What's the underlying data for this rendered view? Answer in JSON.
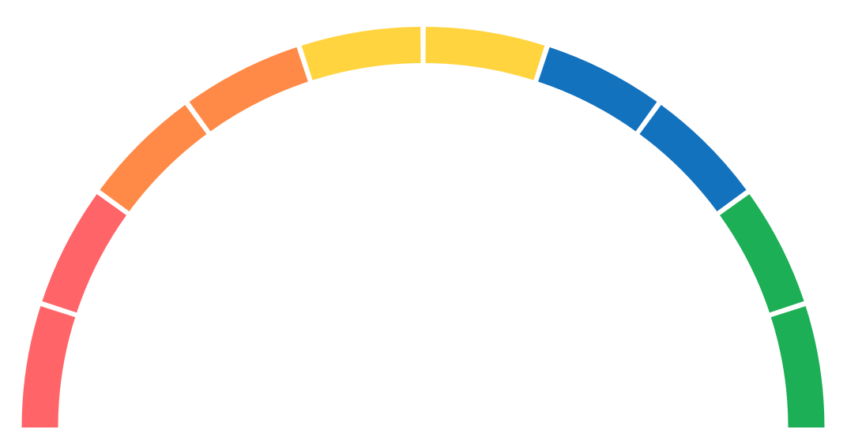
{
  "chart_data": {
    "type": "gauge",
    "start_angle_deg": 180,
    "end_angle_deg": 0,
    "segments": [
      {
        "color": "#FF6468"
      },
      {
        "color": "#FF6468"
      },
      {
        "color": "#FF8A47"
      },
      {
        "color": "#FF8A47"
      },
      {
        "color": "#FFD43F"
      },
      {
        "color": "#FFD43F"
      },
      {
        "color": "#1372BE"
      },
      {
        "color": "#1372BE"
      },
      {
        "color": "#1CAF55"
      },
      {
        "color": "#1CAF55"
      }
    ]
  }
}
